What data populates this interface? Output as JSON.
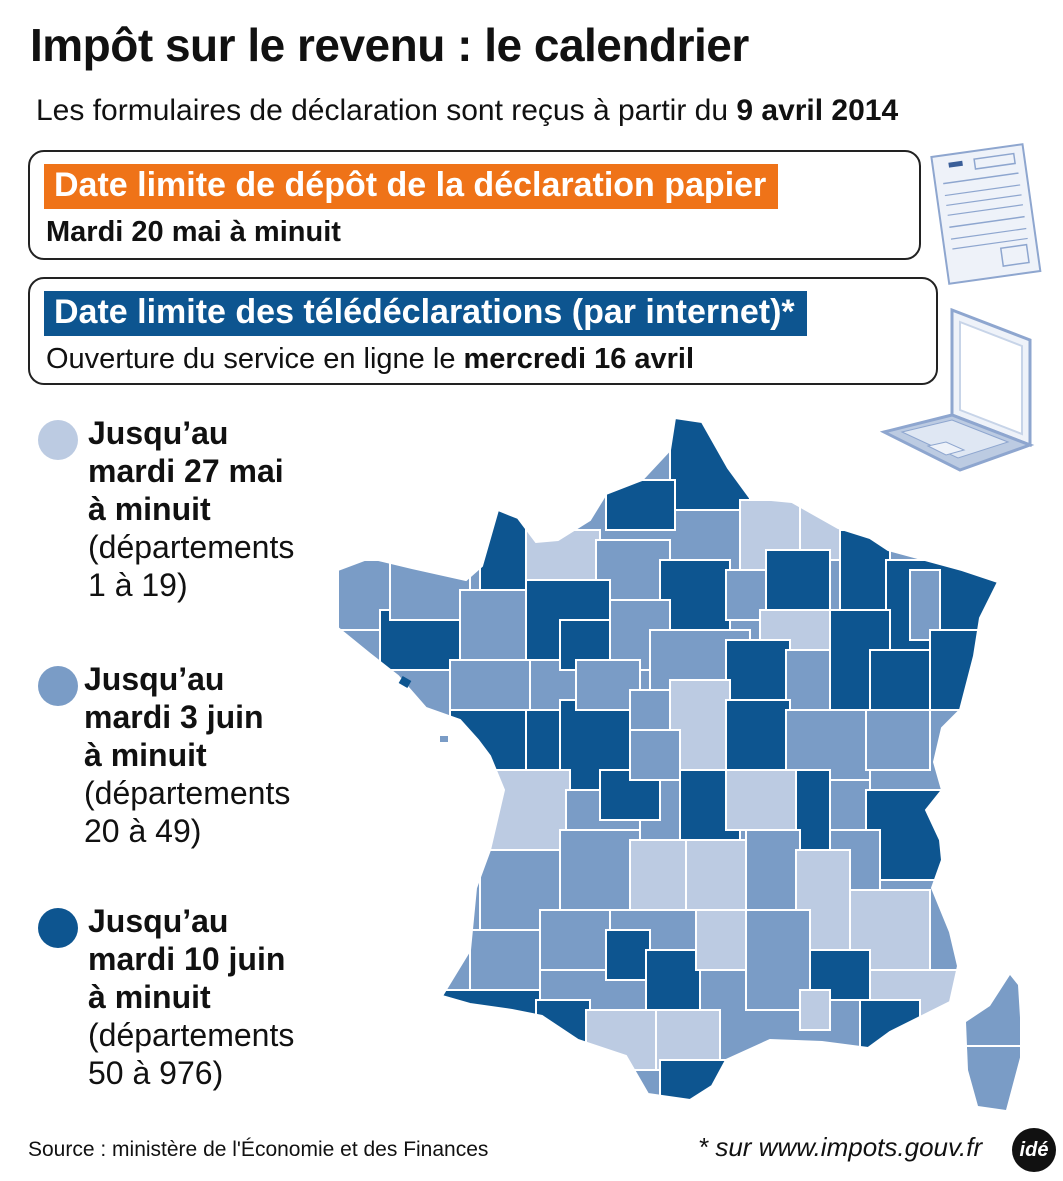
{
  "title": "Impôt sur le revenu : le calendrier",
  "subtitle": {
    "text": "Les formulaires de déclaration sont reçus à partir du ",
    "date": "9 avril 2014"
  },
  "paper_box": {
    "heading": "Date limite de dépôt de la déclaration papier",
    "line": "Mardi 20 mai à minuit"
  },
  "online_box": {
    "heading": "Date limite des télédéclarations (par internet)*",
    "line_text": "Ouverture du service en ligne le ",
    "line_date": "mercredi 16 avril"
  },
  "legend": [
    {
      "line1": "Jusqu’au",
      "line2": "mardi 27 mai",
      "line3": "à minuit",
      "line4": "(départements",
      "line5": "1 à 19)",
      "color": "#bccbe2"
    },
    {
      "line1": "Jusqu’au",
      "line2": "mardi 3 juin",
      "line3": "à minuit",
      "line4": "(départements",
      "line5": "20 à 49)",
      "color": "#7a9cc6"
    },
    {
      "line1": "Jusqu’au",
      "line2": "mardi 10 juin",
      "line3": "à minuit",
      "line4": "(départements",
      "line5": "50 à 976)",
      "color": "#0d5590"
    }
  ],
  "icons": {
    "paper": "tax-form-icon",
    "laptop": "laptop-icon"
  },
  "colors": {
    "orange": "#ef7318",
    "dark_blue": "#0d5590",
    "mid_blue": "#7a9cc6",
    "light_blue": "#bccbe2"
  },
  "source": "Source : ministère de l'Économie et des Finances",
  "note": "* sur www.impots.gouv.fr",
  "logo": "idé"
}
